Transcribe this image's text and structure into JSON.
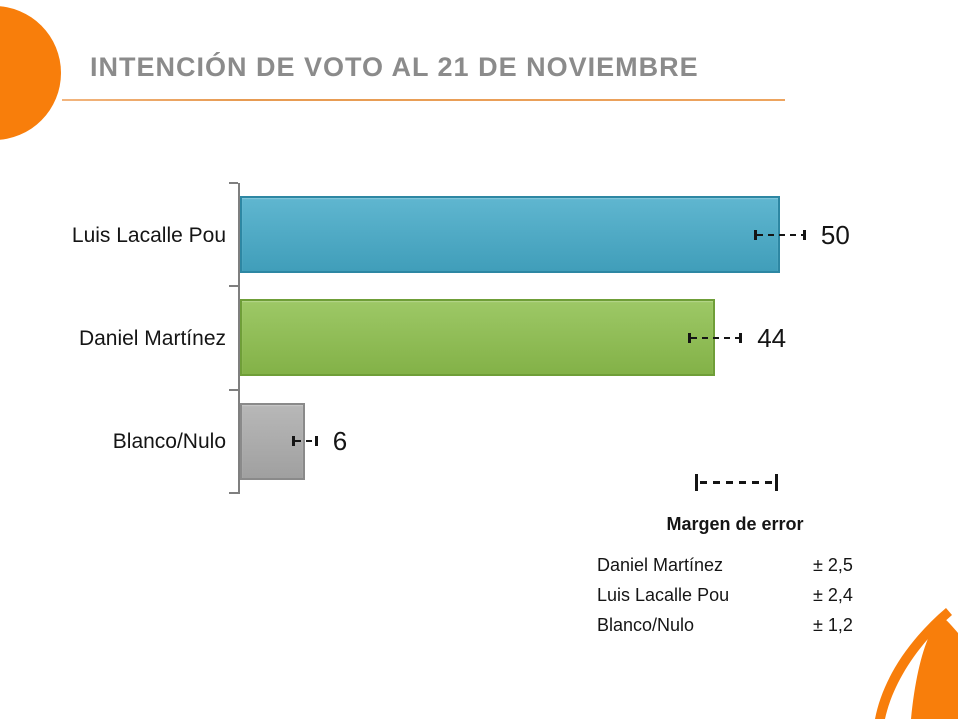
{
  "accent": {
    "orange": "#F87E0B",
    "divider": "#E79B52",
    "title_gray": "#8B8B8B",
    "axis_gray": "#7F7F7F",
    "text_ink": "#151515"
  },
  "header": {
    "title": "INTENCIÓN DE VOTO AL 21 DE NOVIEMBRE"
  },
  "chart_data": {
    "type": "bar",
    "orientation": "horizontal",
    "title": "INTENCIÓN DE VOTO AL 21 DE NOVIEMBRE",
    "categories": [
      "Luis Lacalle Pou",
      "Daniel Martínez",
      "Blanco/Nulo"
    ],
    "values": [
      50,
      44,
      6
    ],
    "errors": [
      2.4,
      2.5,
      1.2
    ],
    "data_labels": [
      "50",
      "44",
      "6"
    ],
    "bar_colors": [
      "#45AAC8",
      "#8DBF4D",
      "#ACACAC"
    ],
    "bar_border_colors": [
      "#2D87A3",
      "#6F9E38",
      "#8A8A8A"
    ],
    "xlim": [
      0,
      55
    ],
    "grid": false,
    "value_axis_labels_visible": false,
    "legend": {
      "position": "bottom-right",
      "title": "Margen de error",
      "rows": [
        {
          "label": "Daniel Martínez",
          "value": "± 2,5"
        },
        {
          "label": "Luis Lacalle Pou",
          "value": "± 2,4"
        },
        {
          "label": "Blanco/Nulo",
          "value": "± 1,2"
        }
      ]
    }
  }
}
